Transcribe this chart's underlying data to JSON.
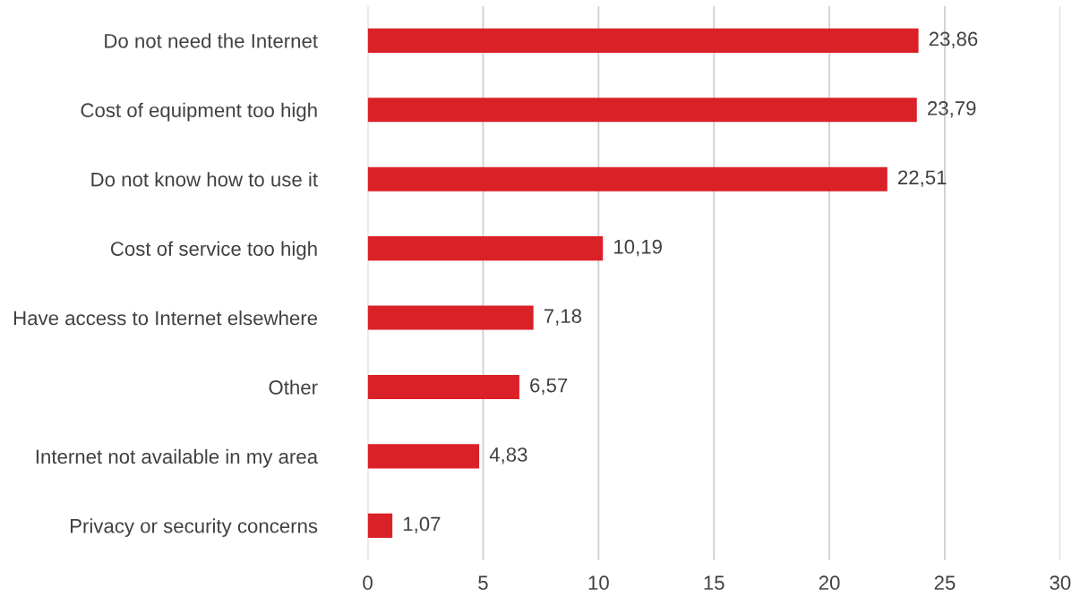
{
  "chart_data": {
    "type": "bar",
    "orientation": "horizontal",
    "categories": [
      "Do not need the Internet",
      "Cost of equipment too high",
      "Do not know how to use it",
      "Cost of service too high",
      "Have access to Internet elsewhere",
      "Other",
      "Internet not available in my area",
      "Privacy or security concerns"
    ],
    "values": [
      23.86,
      23.79,
      22.51,
      10.19,
      7.18,
      6.57,
      4.83,
      1.07
    ],
    "value_labels": [
      "23,86",
      "23,79",
      "22,51",
      "10,19",
      "7,18",
      "6,57",
      "4,83",
      "1,07"
    ],
    "color": "#da2128",
    "xlim": [
      0,
      30
    ],
    "xticks": [
      0,
      5,
      10,
      15,
      20,
      25,
      30
    ],
    "grid": "x"
  }
}
